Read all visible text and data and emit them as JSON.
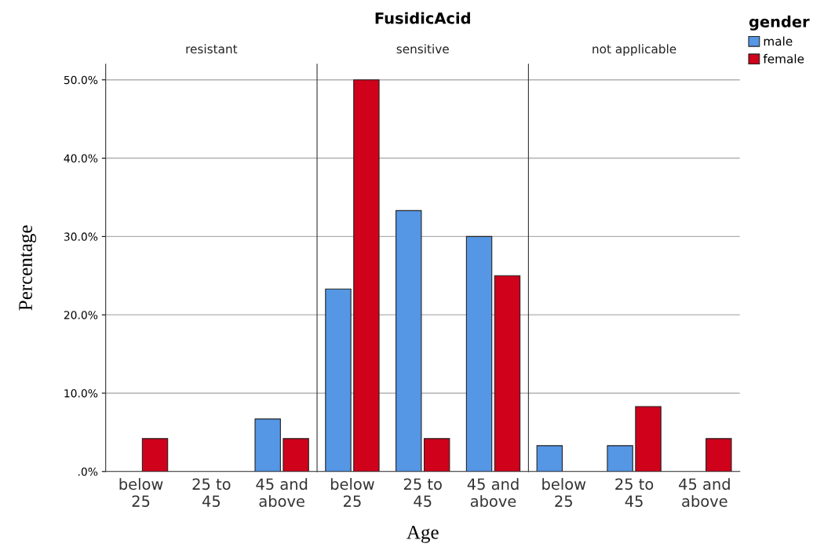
{
  "chart_data": [
    {
      "type": "bar",
      "title": "resistant",
      "annotations": [
        "FusidicAcid"
      ],
      "ylabel": "Percentage",
      "legend_title": "gender",
      "legend": "top right",
      "categories": [
        "below\n25",
        "25 to\n45",
        "45 and\nabove"
      ],
      "series": [
        {
          "name": "male",
          "color": "#5596e5",
          "values": [
            null,
            null,
            6.7
          ]
        },
        {
          "name": "female",
          "color": "#d0021b",
          "values": [
            4.2,
            null,
            4.2
          ]
        }
      ],
      "ylim": [
        0,
        52
      ],
      "yticks": [
        {
          "value": 0,
          "label": ".0%"
        },
        {
          "value": 10,
          "label": "10.0%"
        },
        {
          "value": 20,
          "label": "20.0%"
        },
        {
          "value": 30,
          "label": "30.0%"
        },
        {
          "value": 40,
          "label": "40.0%"
        },
        {
          "value": 50,
          "label": "50.0%"
        }
      ],
      "grid": "y"
    },
    {
      "type": "bar",
      "title": "sensitive",
      "xlabel": "Age",
      "categories": [
        "below\n25",
        "25 to\n45",
        "45 and\nabove"
      ],
      "series": [
        {
          "color": "#5596e5",
          "values": [
            23.3,
            33.3,
            30.0
          ]
        },
        {
          "color": "#d0021b",
          "values": [
            50.0,
            4.2,
            25.0
          ]
        }
      ],
      "ylim": [
        0,
        52
      ],
      "yticks": [
        {
          "value": 0,
          "label": null
        },
        {
          "value": 10,
          "label": null
        },
        {
          "value": 20,
          "label": null
        },
        {
          "value": 30,
          "label": null
        },
        {
          "value": 40,
          "label": null
        },
        {
          "value": 50,
          "label": null
        }
      ],
      "grid": "y",
      "tick_labels": "x"
    },
    {
      "type": "bar",
      "title": "not applicable",
      "categories": [
        "below\n25",
        "25 to\n45",
        "45 and\nabove"
      ],
      "series": [
        {
          "color": "#5596e5",
          "values": [
            3.3,
            3.3,
            null
          ]
        },
        {
          "color": "#d0021b",
          "values": [
            null,
            8.3,
            4.2
          ]
        }
      ],
      "ylim": [
        0,
        52
      ],
      "yticks": [
        {
          "value": 0,
          "label": null
        },
        {
          "value": 10,
          "label": null
        },
        {
          "value": 20,
          "label": null
        },
        {
          "value": 30,
          "label": null
        },
        {
          "value": 40,
          "label": null
        },
        {
          "value": 50,
          "label": null
        }
      ],
      "grid": "y",
      "tick_labels": "x"
    }
  ]
}
